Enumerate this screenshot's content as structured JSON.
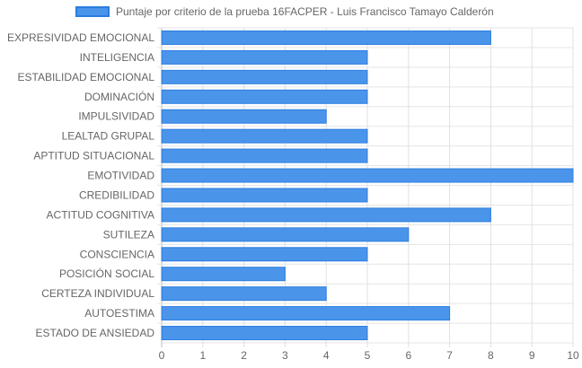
{
  "chart_data": {
    "type": "bar",
    "orientation": "horizontal",
    "categories": [
      "EXPRESIVIDAD EMOCIONAL",
      "INTELIGENCIA",
      "ESTABILIDAD EMOCIONAL",
      "DOMINACIÓN",
      "IMPULSIVIDAD",
      "LEALTAD GRUPAL",
      "APTITUD SITUACIONAL",
      "EMOTIVIDAD",
      "CREDIBILIDAD",
      "ACTITUD COGNITIVA",
      "SUTILEZA",
      "CONSCIENCIA",
      "POSICIÓN SOCIAL",
      "CERTEZA INDIVIDUAL",
      "AUTOESTIMA",
      "ESTADO DE ANSIEDAD"
    ],
    "series": [
      {
        "name": "Puntaje por criterio de la prueba 16FACPER - Luis Francisco Tamayo Calderón",
        "values": [
          8,
          5,
          5,
          5,
          4,
          5,
          5,
          10,
          5,
          8,
          6,
          5,
          3,
          4,
          7,
          5
        ],
        "color": "#4a95ea",
        "border_color": "#2b7de0"
      }
    ],
    "xlim": [
      0,
      10
    ],
    "x_ticks": [
      "0",
      "1",
      "2",
      "3",
      "4",
      "5",
      "6",
      "7",
      "8",
      "9",
      "10"
    ],
    "grid": true,
    "legend_position": "top"
  }
}
